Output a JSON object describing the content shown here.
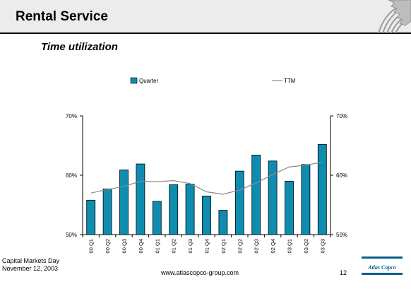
{
  "slide": {
    "title": "Rental Service",
    "subtitle": "Time utilization",
    "footer_line1": "Capital Markets Day",
    "footer_line2": "November 12, 2003",
    "url": "www.atlascopco-group.com",
    "page": "12",
    "logo_text": "Atlas Copco"
  },
  "colors": {
    "bar": "#0e8db0",
    "bar_stroke": "#000000",
    "ttm_line": "#8a8a8a",
    "logo_blue": "#0a5f8c"
  },
  "icons": {
    "title_graphic": "gear-icon",
    "logo": "atlas-copco-logo"
  },
  "chart_data": {
    "type": "bar",
    "categories": [
      "00 Q1",
      "00 Q2",
      "00 Q3",
      "00 Q4",
      "01 Q1",
      "01 Q2",
      "01 Q3",
      "01 Q4",
      "02 Q1",
      "02 Q2",
      "02 Q3",
      "02 Q4",
      "03 Q1",
      "03 Q2",
      "03 Q3"
    ],
    "series": [
      {
        "name": "Quarter",
        "type": "bar",
        "values": [
          55.8,
          57.7,
          60.9,
          61.9,
          55.6,
          58.4,
          58.5,
          56.5,
          54.1,
          60.7,
          63.4,
          62.4,
          59.0,
          61.8,
          65.2
        ]
      },
      {
        "name": "TTM",
        "type": "line",
        "values": [
          57.0,
          57.6,
          58.1,
          59.0,
          58.9,
          59.1,
          58.6,
          57.2,
          56.8,
          57.5,
          58.7,
          60.1,
          61.4,
          61.7,
          62.2
        ]
      }
    ],
    "yticks_left": [
      "70%",
      "60%",
      "50%"
    ],
    "yticks_right": [
      "70%",
      "60%",
      "50%"
    ],
    "ylim": [
      50,
      70
    ],
    "legend": "top",
    "grid": false
  }
}
